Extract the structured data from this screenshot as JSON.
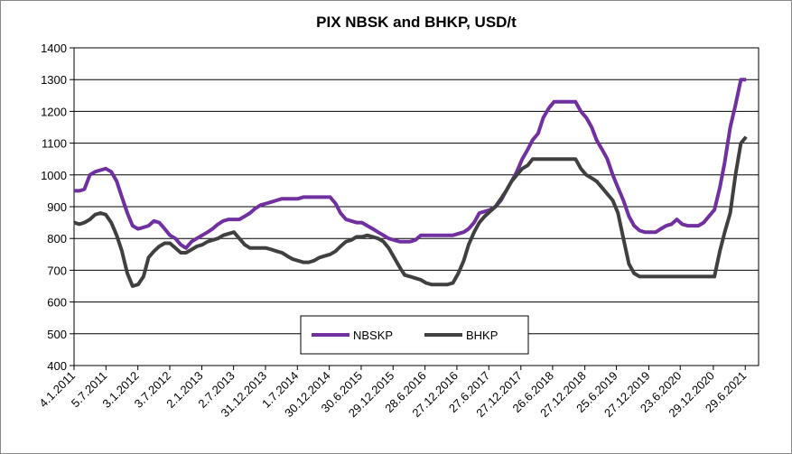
{
  "chart_data": {
    "type": "line",
    "title": "PIX NBSK and BHKP, USD/t",
    "x": [
      "4.1.2011",
      "4.2.2011",
      "4.3.2011",
      "4.4.2011",
      "4.5.2011",
      "4.6.2011",
      "4.7.2011",
      "4.8.2011",
      "4.9.2011",
      "4.10.2011",
      "4.11.2011",
      "4.12.2011",
      "4.1.2012",
      "4.2.2012",
      "4.3.2012",
      "4.4.2012",
      "4.5.2012",
      "4.6.2012",
      "4.7.2012",
      "4.8.2012",
      "4.9.2012",
      "4.10.2012",
      "4.11.2012",
      "4.12.2012",
      "4.1.2013",
      "4.2.2013",
      "4.3.2013",
      "4.4.2013",
      "4.5.2013",
      "4.6.2013",
      "4.7.2013",
      "4.8.2013",
      "4.9.2013",
      "4.10.2013",
      "4.11.2013",
      "4.12.2013",
      "4.1.2014",
      "4.2.2014",
      "4.3.2014",
      "4.4.2014",
      "4.5.2014",
      "4.6.2014",
      "4.7.2014",
      "4.8.2014",
      "4.9.2014",
      "4.10.2014",
      "4.11.2014",
      "4.12.2014",
      "4.1.2015",
      "4.2.2015",
      "4.3.2015",
      "4.4.2015",
      "4.5.2015",
      "4.6.2015",
      "4.7.2015",
      "4.8.2015",
      "4.9.2015",
      "4.10.2015",
      "4.11.2015",
      "4.12.2015",
      "4.1.2016",
      "4.2.2016",
      "4.3.2016",
      "4.4.2016",
      "4.5.2016",
      "4.6.2016",
      "4.7.2016",
      "4.8.2016",
      "4.9.2016",
      "4.10.2016",
      "4.11.2016",
      "4.12.2016",
      "4.1.2017",
      "4.2.2017",
      "4.3.2017",
      "4.4.2017",
      "4.5.2017",
      "4.6.2017",
      "4.7.2017",
      "4.8.2017",
      "4.9.2017",
      "4.10.2017",
      "4.11.2017",
      "4.12.2017",
      "4.1.2018",
      "4.2.2018",
      "4.3.2018",
      "4.4.2018",
      "4.5.2018",
      "4.6.2018",
      "4.7.2018",
      "4.8.2018",
      "4.9.2018",
      "4.10.2018",
      "4.11.2018",
      "4.12.2018",
      "4.1.2019",
      "4.2.2019",
      "4.3.2019",
      "4.4.2019",
      "4.5.2019",
      "4.6.2019",
      "4.7.2019",
      "4.8.2019",
      "4.9.2019",
      "4.10.2019",
      "4.11.2019",
      "4.12.2019",
      "4.1.2020",
      "4.2.2020",
      "4.3.2020",
      "4.4.2020",
      "4.5.2020",
      "4.6.2020",
      "4.7.2020",
      "4.8.2020",
      "4.9.2020",
      "4.10.2020",
      "4.11.2020",
      "4.12.2020",
      "4.1.2021",
      "4.2.2021",
      "4.3.2021",
      "4.4.2021",
      "4.5.2021",
      "4.6.2021",
      "4.7.2021"
    ],
    "series": [
      {
        "name": "NBSKP",
        "color": "#7030a0",
        "values": [
          950,
          950,
          955,
          1000,
          1010,
          1015,
          1020,
          1010,
          980,
          930,
          880,
          840,
          830,
          835,
          840,
          855,
          850,
          830,
          810,
          800,
          780,
          770,
          790,
          800,
          810,
          820,
          830,
          845,
          855,
          860,
          860,
          860,
          870,
          880,
          895,
          905,
          910,
          915,
          920,
          925,
          925,
          925,
          925,
          930,
          930,
          930,
          930,
          930,
          930,
          910,
          880,
          860,
          855,
          850,
          850,
          840,
          830,
          820,
          810,
          800,
          795,
          790,
          790,
          790,
          795,
          810,
          810,
          810,
          810,
          810,
          810,
          810,
          815,
          820,
          830,
          850,
          880,
          885,
          890,
          900,
          920,
          950,
          980,
          1010,
          1050,
          1080,
          1110,
          1130,
          1180,
          1210,
          1230,
          1230,
          1230,
          1230,
          1230,
          1200,
          1180,
          1150,
          1110,
          1080,
          1050,
          1000,
          960,
          920,
          870,
          840,
          825,
          820,
          820,
          820,
          830,
          840,
          845,
          860,
          845,
          840,
          840,
          840,
          850,
          870,
          890,
          960,
          1040,
          1150,
          1220,
          1300,
          1300
        ]
      },
      {
        "name": "BHKP",
        "color": "#404040",
        "values": [
          850,
          845,
          850,
          860,
          875,
          880,
          875,
          850,
          810,
          760,
          690,
          650,
          655,
          680,
          740,
          760,
          775,
          785,
          785,
          770,
          755,
          755,
          765,
          775,
          780,
          790,
          795,
          800,
          810,
          815,
          820,
          800,
          780,
          770,
          770,
          770,
          770,
          765,
          760,
          755,
          745,
          735,
          730,
          725,
          725,
          730,
          740,
          745,
          750,
          760,
          775,
          790,
          795,
          805,
          805,
          810,
          805,
          800,
          790,
          770,
          740,
          710,
          685,
          680,
          675,
          670,
          660,
          655,
          655,
          655,
          655,
          660,
          690,
          730,
          780,
          820,
          850,
          870,
          885,
          900,
          925,
          950,
          980,
          1000,
          1020,
          1030,
          1050,
          1050,
          1050,
          1050,
          1050,
          1050,
          1050,
          1050,
          1050,
          1020,
          1000,
          990,
          980,
          960,
          940,
          920,
          880,
          800,
          720,
          690,
          680,
          680,
          680,
          680,
          680,
          680,
          680,
          680,
          680,
          680,
          680,
          680,
          680,
          680,
          680,
          760,
          820,
          880,
          1000,
          1100,
          1120
        ]
      }
    ],
    "xlim": [
      "4.1.2011",
      "13.9.2021"
    ],
    "xticks": [
      "4.1.2011",
      "5.7.2011",
      "3.1.2012",
      "3.7.2012",
      "2.1.2013",
      "2.7.2013",
      "31.12.2013",
      "1.7.2014",
      "30.12.2014",
      "30.6.2015",
      "29.12.2015",
      "28.6.2016",
      "27.12.2016",
      "27.6.2017",
      "27.12.2017",
      "26.6.2018",
      "27.12.2018",
      "25.6.2019",
      "27.12.2019",
      "23.6.2020",
      "29.12.2020",
      "29.6.2021"
    ],
    "ylim": [
      400,
      1400
    ],
    "yticks": [
      400,
      500,
      600,
      700,
      800,
      900,
      1000,
      1100,
      1200,
      1300,
      1400
    ],
    "grid": true,
    "legend": "bottom"
  }
}
